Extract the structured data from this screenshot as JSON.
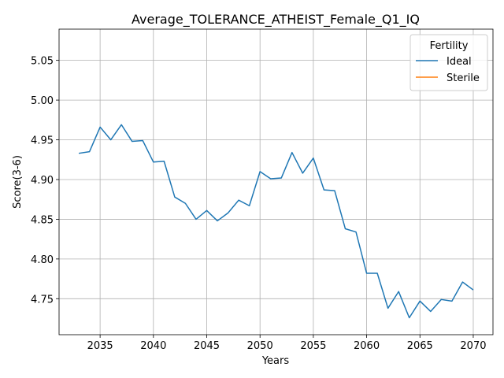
{
  "chart_data": {
    "type": "line",
    "title": "Average_TOLERANCE_ATHEIST_Female_Q1_IQ",
    "xlabel": "Years",
    "ylabel": "Score(3-6)",
    "xlim": [
      2031.15,
      2071.85
    ],
    "ylim": [
      4.7047,
      5.0893
    ],
    "x_ticks": [
      2035,
      2040,
      2045,
      2050,
      2055,
      2060,
      2065,
      2070
    ],
    "y_ticks": [
      4.75,
      4.8,
      4.85,
      4.9,
      4.95,
      5.0,
      5.05
    ],
    "y_tick_labels": [
      "4.75",
      "4.80",
      "4.85",
      "4.90",
      "4.95",
      "5.00",
      "5.05"
    ],
    "grid": true,
    "legend": {
      "title": "Fertility",
      "placement": "top-right"
    },
    "series": [
      {
        "name": "Ideal",
        "color": "#1f77b4",
        "x": [
          2033,
          2034,
          2035,
          2036,
          2037,
          2038,
          2039,
          2040,
          2041,
          2042,
          2043,
          2044,
          2045,
          2046,
          2047,
          2048,
          2049,
          2050,
          2051,
          2052,
          2053,
          2054,
          2055,
          2056,
          2057,
          2058,
          2059,
          2060,
          2061,
          2062,
          2063,
          2064,
          2065,
          2066,
          2067,
          2068,
          2069,
          2070
        ],
        "y": [
          4.933,
          4.935,
          4.966,
          4.95,
          4.969,
          4.948,
          4.949,
          4.922,
          4.923,
          4.878,
          4.87,
          4.85,
          4.861,
          4.848,
          4.858,
          4.874,
          4.867,
          4.91,
          4.901,
          4.902,
          4.934,
          4.908,
          4.927,
          4.887,
          4.886,
          4.838,
          4.834,
          4.782,
          4.782,
          4.738,
          4.759,
          4.726,
          4.747,
          4.734,
          4.749,
          4.747,
          4.771,
          4.761
        ]
      },
      {
        "name": "Sterile",
        "color": "#ff7f0e",
        "x": [],
        "y": []
      }
    ]
  }
}
